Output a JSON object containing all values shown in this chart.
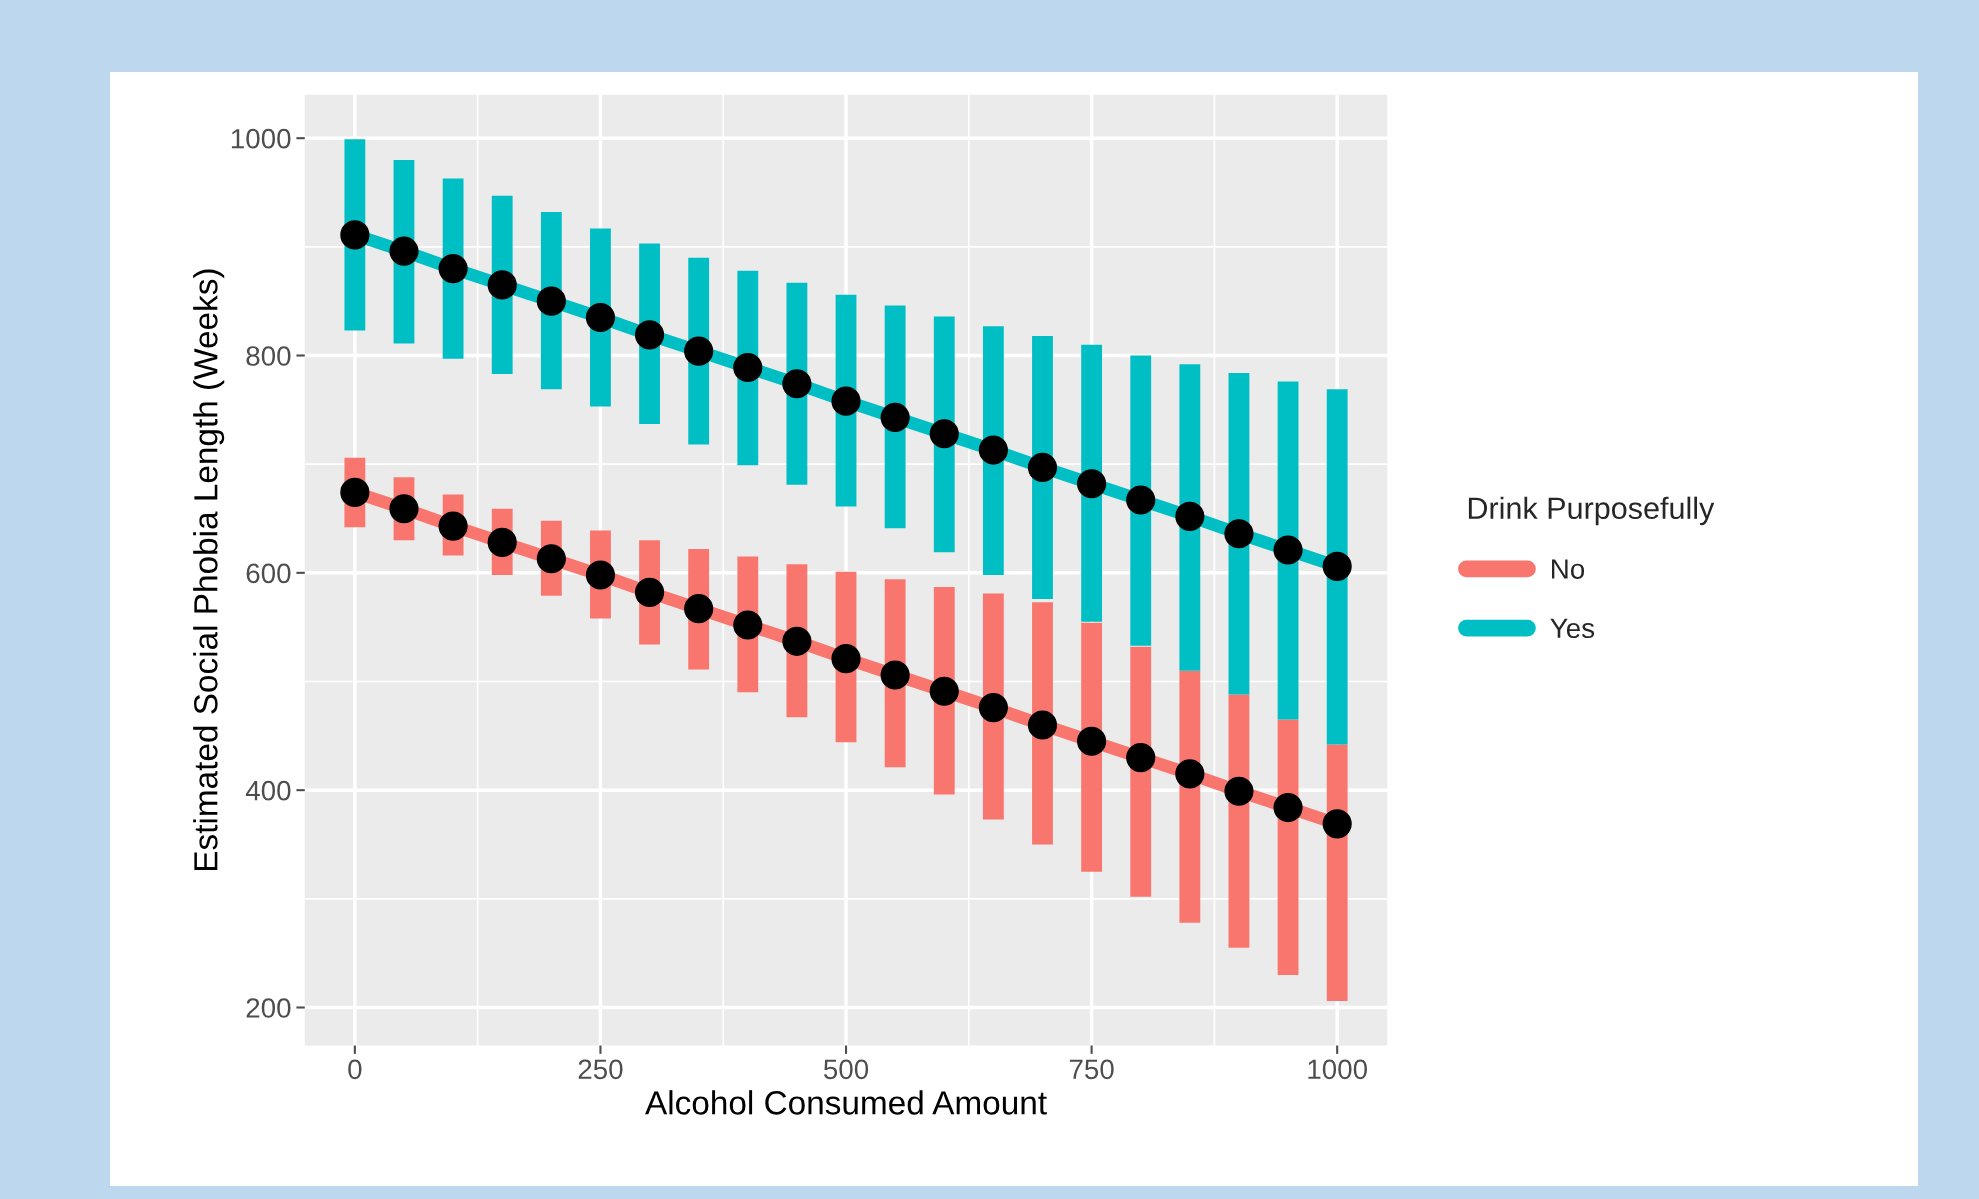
{
  "chart_data": {
    "type": "line",
    "xlabel": "Alcohol Consumed Amount",
    "ylabel": "Estimated Social Phobia Length (Weeks)",
    "legend_title": "Drink Purposefully",
    "x": [
      0,
      50,
      100,
      150,
      200,
      250,
      300,
      350,
      400,
      450,
      500,
      550,
      600,
      650,
      700,
      750,
      800,
      850,
      900,
      950,
      1000
    ],
    "series": [
      {
        "name": "No",
        "color": "#f8766d",
        "values": [
          674,
          659,
          643,
          628,
          613,
          598,
          582,
          567,
          552,
          537,
          521,
          506,
          491,
          476,
          460,
          445,
          430,
          415,
          399,
          384,
          369
        ],
        "errors": [
          [
            642,
            706
          ],
          [
            630,
            688
          ],
          [
            616,
            672
          ],
          [
            598,
            659
          ],
          [
            579,
            648
          ],
          [
            558,
            639
          ],
          [
            534,
            630
          ],
          [
            511,
            622
          ],
          [
            490,
            615
          ],
          [
            467,
            608
          ],
          [
            444,
            601
          ],
          [
            421,
            594
          ],
          [
            396,
            587
          ],
          [
            373,
            581
          ],
          [
            350,
            573
          ],
          [
            325,
            554
          ],
          [
            302,
            532
          ],
          [
            278,
            510
          ],
          [
            255,
            488
          ],
          [
            230,
            465
          ],
          [
            206,
            442
          ]
        ]
      },
      {
        "name": "Yes",
        "color": "#00bfc4",
        "values": [
          911,
          896,
          880,
          865,
          850,
          835,
          819,
          804,
          789,
          774,
          758,
          743,
          728,
          713,
          697,
          682,
          667,
          652,
          636,
          621,
          606
        ],
        "errors": [
          [
            823,
            999
          ],
          [
            811,
            980
          ],
          [
            797,
            963
          ],
          [
            783,
            947
          ],
          [
            769,
            932
          ],
          [
            753,
            917
          ],
          [
            737,
            903
          ],
          [
            718,
            890
          ],
          [
            699,
            878
          ],
          [
            681,
            867
          ],
          [
            661,
            856
          ],
          [
            641,
            846
          ],
          [
            619,
            836
          ],
          [
            598,
            827
          ],
          [
            576,
            818
          ],
          [
            555,
            810
          ],
          [
            533,
            800
          ],
          [
            510,
            792
          ],
          [
            488,
            784
          ],
          [
            465,
            776
          ],
          [
            442,
            769
          ]
        ]
      }
    ],
    "xlim": [
      -51,
      1051
    ],
    "ylim": [
      165,
      1040
    ],
    "xticks": [
      0,
      250,
      500,
      750,
      1000
    ],
    "yticks": [
      200,
      400,
      600,
      800,
      1000
    ],
    "grid": true,
    "legend": "right",
    "marker": "circle",
    "line_style": "solid"
  }
}
